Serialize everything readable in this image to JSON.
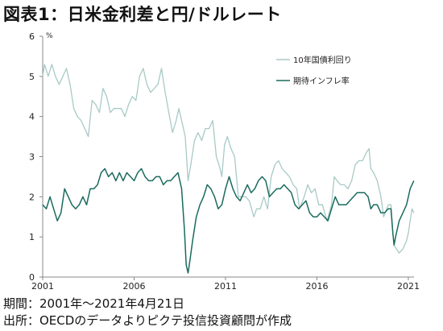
{
  "title": "図表1：日米金利差と円/ドルレート",
  "footer": {
    "period": "期間：2001年～2021年4月21日",
    "source": "出所：OECDのデータよりピクテ投信投資顧問が作成"
  },
  "colors": {
    "nominal_yield": "#a8cac6",
    "inflation_expectation": "#1a6b5e",
    "axis": "#888888"
  },
  "chart_data": {
    "type": "line",
    "title": "",
    "ylabel_unit": "%",
    "ylim": [
      0,
      6
    ],
    "yticks": [
      "0",
      "1",
      "2",
      "3",
      "4",
      "5",
      "6"
    ],
    "xlim": [
      2001.0,
      2021.31
    ],
    "xticks": [
      {
        "value": 2001,
        "label": "2001"
      },
      {
        "value": 2006,
        "label": "2006"
      },
      {
        "value": 2011,
        "label": "2011"
      },
      {
        "value": 2016,
        "label": "2016"
      },
      {
        "value": 2021,
        "label": "2021"
      }
    ],
    "legend_position": "top-right",
    "series": [
      {
        "name": "10年国債利回り",
        "color_key": "nominal_yield",
        "points": [
          [
            2001.0,
            5.0
          ],
          [
            2001.1,
            5.3
          ],
          [
            2001.3,
            5.0
          ],
          [
            2001.5,
            5.3
          ],
          [
            2001.7,
            5.0
          ],
          [
            2001.9,
            4.8
          ],
          [
            2002.1,
            5.0
          ],
          [
            2002.3,
            5.2
          ],
          [
            2002.5,
            4.8
          ],
          [
            2002.7,
            4.2
          ],
          [
            2002.9,
            4.0
          ],
          [
            2003.1,
            3.9
          ],
          [
            2003.3,
            3.7
          ],
          [
            2003.5,
            3.5
          ],
          [
            2003.7,
            4.4
          ],
          [
            2003.9,
            4.3
          ],
          [
            2004.1,
            4.1
          ],
          [
            2004.3,
            4.7
          ],
          [
            2004.5,
            4.5
          ],
          [
            2004.7,
            4.1
          ],
          [
            2004.9,
            4.2
          ],
          [
            2005.1,
            4.2
          ],
          [
            2005.3,
            4.2
          ],
          [
            2005.5,
            4.0
          ],
          [
            2005.7,
            4.3
          ],
          [
            2005.9,
            4.5
          ],
          [
            2006.1,
            4.4
          ],
          [
            2006.3,
            5.0
          ],
          [
            2006.5,
            5.2
          ],
          [
            2006.7,
            4.8
          ],
          [
            2006.9,
            4.6
          ],
          [
            2007.1,
            4.7
          ],
          [
            2007.3,
            4.8
          ],
          [
            2007.5,
            5.2
          ],
          [
            2007.7,
            4.6
          ],
          [
            2007.9,
            4.1
          ],
          [
            2008.1,
            3.6
          ],
          [
            2008.3,
            3.9
          ],
          [
            2008.45,
            4.2
          ],
          [
            2008.6,
            3.9
          ],
          [
            2008.8,
            3.5
          ],
          [
            2008.95,
            2.4
          ],
          [
            2009.1,
            2.8
          ],
          [
            2009.3,
            3.4
          ],
          [
            2009.5,
            3.6
          ],
          [
            2009.7,
            3.4
          ],
          [
            2009.9,
            3.7
          ],
          [
            2010.1,
            3.7
          ],
          [
            2010.3,
            3.9
          ],
          [
            2010.5,
            3.0
          ],
          [
            2010.7,
            2.7
          ],
          [
            2010.8,
            2.5
          ],
          [
            2010.95,
            3.3
          ],
          [
            2011.1,
            3.5
          ],
          [
            2011.3,
            3.2
          ],
          [
            2011.5,
            3.0
          ],
          [
            2011.7,
            2.0
          ],
          [
            2011.9,
            2.0
          ],
          [
            2012.1,
            2.0
          ],
          [
            2012.3,
            1.9
          ],
          [
            2012.55,
            1.5
          ],
          [
            2012.7,
            1.7
          ],
          [
            2012.9,
            1.7
          ],
          [
            2013.1,
            2.0
          ],
          [
            2013.3,
            1.7
          ],
          [
            2013.5,
            2.5
          ],
          [
            2013.7,
            2.8
          ],
          [
            2013.9,
            2.9
          ],
          [
            2014.1,
            2.7
          ],
          [
            2014.3,
            2.6
          ],
          [
            2014.5,
            2.5
          ],
          [
            2014.7,
            2.3
          ],
          [
            2014.9,
            2.2
          ],
          [
            2015.05,
            1.7
          ],
          [
            2015.3,
            2.0
          ],
          [
            2015.5,
            2.3
          ],
          [
            2015.7,
            2.1
          ],
          [
            2015.9,
            2.2
          ],
          [
            2016.1,
            1.8
          ],
          [
            2016.3,
            1.8
          ],
          [
            2016.55,
            1.4
          ],
          [
            2016.8,
            1.8
          ],
          [
            2016.95,
            2.5
          ],
          [
            2017.1,
            2.4
          ],
          [
            2017.3,
            2.3
          ],
          [
            2017.5,
            2.3
          ],
          [
            2017.7,
            2.2
          ],
          [
            2017.9,
            2.4
          ],
          [
            2018.1,
            2.8
          ],
          [
            2018.3,
            2.9
          ],
          [
            2018.5,
            2.9
          ],
          [
            2018.7,
            3.1
          ],
          [
            2018.85,
            3.2
          ],
          [
            2018.95,
            2.7
          ],
          [
            2019.1,
            2.6
          ],
          [
            2019.3,
            2.4
          ],
          [
            2019.5,
            2.0
          ],
          [
            2019.65,
            1.5
          ],
          [
            2019.9,
            1.8
          ],
          [
            2020.05,
            1.8
          ],
          [
            2020.2,
            0.8
          ],
          [
            2020.35,
            0.7
          ],
          [
            2020.5,
            0.6
          ],
          [
            2020.7,
            0.7
          ],
          [
            2020.9,
            0.9
          ],
          [
            2021.0,
            1.1
          ],
          [
            2021.1,
            1.4
          ],
          [
            2021.2,
            1.7
          ],
          [
            2021.3,
            1.6
          ]
        ]
      },
      {
        "name": "期待インフレ率",
        "color_key": "inflation_expectation",
        "points": [
          [
            2001.0,
            1.8
          ],
          [
            2001.2,
            1.7
          ],
          [
            2001.4,
            2.0
          ],
          [
            2001.6,
            1.7
          ],
          [
            2001.8,
            1.4
          ],
          [
            2002.0,
            1.6
          ],
          [
            2002.2,
            2.2
          ],
          [
            2002.4,
            2.0
          ],
          [
            2002.6,
            1.8
          ],
          [
            2002.8,
            1.7
          ],
          [
            2003.0,
            1.8
          ],
          [
            2003.2,
            2.0
          ],
          [
            2003.4,
            1.8
          ],
          [
            2003.6,
            2.2
          ],
          [
            2003.8,
            2.2
          ],
          [
            2004.0,
            2.3
          ],
          [
            2004.2,
            2.6
          ],
          [
            2004.4,
            2.7
          ],
          [
            2004.6,
            2.5
          ],
          [
            2004.8,
            2.6
          ],
          [
            2005.0,
            2.4
          ],
          [
            2005.2,
            2.6
          ],
          [
            2005.4,
            2.4
          ],
          [
            2005.6,
            2.6
          ],
          [
            2005.8,
            2.5
          ],
          [
            2006.0,
            2.4
          ],
          [
            2006.2,
            2.6
          ],
          [
            2006.4,
            2.7
          ],
          [
            2006.6,
            2.5
          ],
          [
            2006.8,
            2.4
          ],
          [
            2007.0,
            2.4
          ],
          [
            2007.2,
            2.5
          ],
          [
            2007.4,
            2.5
          ],
          [
            2007.6,
            2.3
          ],
          [
            2007.8,
            2.4
          ],
          [
            2008.0,
            2.4
          ],
          [
            2008.2,
            2.5
          ],
          [
            2008.4,
            2.6
          ],
          [
            2008.6,
            2.2
          ],
          [
            2008.75,
            1.2
          ],
          [
            2008.85,
            0.3
          ],
          [
            2008.95,
            0.1
          ],
          [
            2009.05,
            0.4
          ],
          [
            2009.2,
            0.9
          ],
          [
            2009.4,
            1.5
          ],
          [
            2009.6,
            1.8
          ],
          [
            2009.8,
            2.0
          ],
          [
            2010.0,
            2.3
          ],
          [
            2010.2,
            2.2
          ],
          [
            2010.4,
            2.0
          ],
          [
            2010.6,
            1.7
          ],
          [
            2010.8,
            1.8
          ],
          [
            2011.0,
            2.2
          ],
          [
            2011.2,
            2.5
          ],
          [
            2011.4,
            2.2
          ],
          [
            2011.6,
            2.0
          ],
          [
            2011.8,
            1.9
          ],
          [
            2012.0,
            2.1
          ],
          [
            2012.2,
            2.3
          ],
          [
            2012.4,
            2.1
          ],
          [
            2012.6,
            2.2
          ],
          [
            2012.8,
            2.4
          ],
          [
            2013.0,
            2.5
          ],
          [
            2013.2,
            2.4
          ],
          [
            2013.4,
            2.0
          ],
          [
            2013.6,
            2.1
          ],
          [
            2013.8,
            2.2
          ],
          [
            2014.0,
            2.2
          ],
          [
            2014.2,
            2.3
          ],
          [
            2014.4,
            2.2
          ],
          [
            2014.6,
            2.1
          ],
          [
            2014.8,
            1.8
          ],
          [
            2015.0,
            1.7
          ],
          [
            2015.2,
            1.8
          ],
          [
            2015.4,
            1.9
          ],
          [
            2015.6,
            1.6
          ],
          [
            2015.8,
            1.5
          ],
          [
            2016.0,
            1.5
          ],
          [
            2016.2,
            1.6
          ],
          [
            2016.4,
            1.5
          ],
          [
            2016.6,
            1.4
          ],
          [
            2016.8,
            1.7
          ],
          [
            2017.0,
            2.0
          ],
          [
            2017.2,
            1.8
          ],
          [
            2017.4,
            1.8
          ],
          [
            2017.6,
            1.8
          ],
          [
            2017.8,
            1.9
          ],
          [
            2018.0,
            2.0
          ],
          [
            2018.2,
            2.1
          ],
          [
            2018.4,
            2.1
          ],
          [
            2018.6,
            2.1
          ],
          [
            2018.8,
            2.0
          ],
          [
            2018.95,
            1.7
          ],
          [
            2019.1,
            1.8
          ],
          [
            2019.3,
            1.8
          ],
          [
            2019.5,
            1.6
          ],
          [
            2019.7,
            1.6
          ],
          [
            2019.9,
            1.7
          ],
          [
            2020.05,
            1.7
          ],
          [
            2020.15,
            1.1
          ],
          [
            2020.22,
            0.8
          ],
          [
            2020.3,
            1.0
          ],
          [
            2020.5,
            1.4
          ],
          [
            2020.7,
            1.6
          ],
          [
            2020.9,
            1.8
          ],
          [
            2021.0,
            2.0
          ],
          [
            2021.1,
            2.2
          ],
          [
            2021.2,
            2.3
          ],
          [
            2021.3,
            2.4
          ]
        ]
      }
    ]
  }
}
